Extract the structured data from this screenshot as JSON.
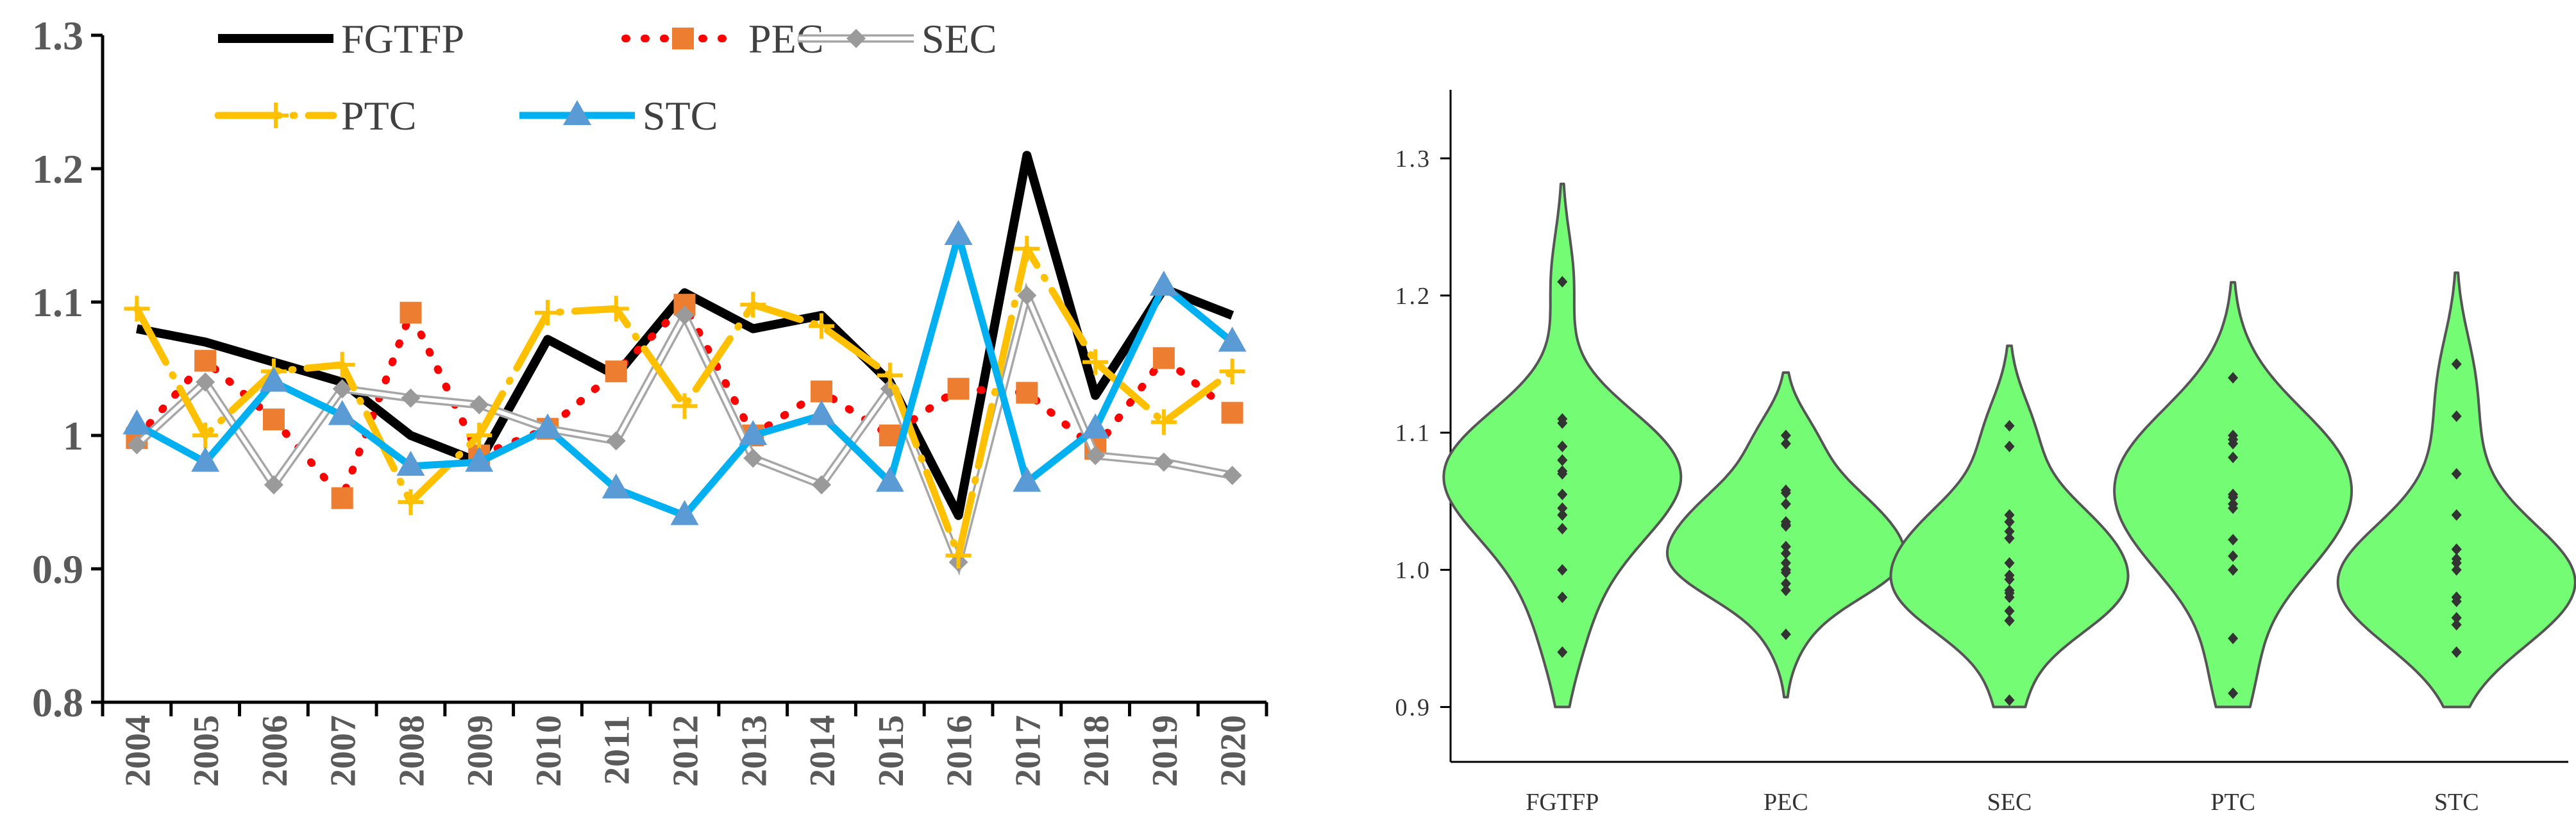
{
  "chart_data": [
    {
      "type": "line",
      "title": "",
      "xlabel": "",
      "ylabel": "",
      "ylim": [
        0.8,
        1.3
      ],
      "y_ticks": [
        "0.8",
        "0.9",
        "1",
        "1.1",
        "1.2",
        "1.3"
      ],
      "categories": [
        "2004",
        "2005",
        "2006",
        "2007",
        "2008",
        "2009",
        "2010",
        "2011",
        "2012",
        "2013",
        "2014",
        "2015",
        "2016",
        "2017",
        "2018",
        "2019",
        "2020"
      ],
      "grid": false,
      "legend": "top",
      "series": [
        {
          "name": "FGTFP",
          "color": "#000000",
          "marker": "none",
          "values": [
            1.08,
            1.07,
            1.055,
            1.04,
            1.0,
            0.98,
            1.072,
            1.045,
            1.107,
            1.08,
            1.09,
            1.04,
            0.94,
            1.21,
            1.03,
            1.11,
            1.09
          ]
        },
        {
          "name": "PEC",
          "color": "#ff0000",
          "marker_color": "#ed7d31",
          "marker": "square",
          "values": [
            0.998,
            1.056,
            1.012,
            0.953,
            1.092,
            0.985,
            1.005,
            1.048,
            1.098,
            1.0,
            1.033,
            1.0,
            1.035,
            1.032,
            0.99,
            1.058,
            1.017
          ]
        },
        {
          "name": "SEC",
          "color": "#a6a6a6",
          "marker": "diamond",
          "values": [
            0.993,
            1.04,
            0.963,
            1.035,
            1.028,
            1.023,
            1.005,
            0.996,
            1.09,
            0.983,
            0.963,
            1.035,
            0.905,
            1.105,
            0.985,
            0.98,
            0.97
          ]
        },
        {
          "name": "PTC",
          "color": "#ffc000",
          "marker": "plus",
          "values": [
            1.095,
            1.0,
            1.048,
            1.053,
            0.95,
            1.0,
            1.092,
            1.095,
            1.022,
            1.098,
            1.082,
            1.045,
            0.91,
            1.14,
            1.055,
            1.01,
            1.048
          ]
        },
        {
          "name": "STC",
          "color": "#00b0f0",
          "marker_color": "#5b9bd5",
          "marker": "triangle",
          "values": [
            1.008,
            0.98,
            1.04,
            1.015,
            0.977,
            0.98,
            1.005,
            0.96,
            0.94,
            1.0,
            1.015,
            0.965,
            1.15,
            0.965,
            1.005,
            1.112,
            1.07
          ]
        }
      ]
    },
    {
      "type": "violin",
      "title": "",
      "xlabel": "",
      "ylabel": "",
      "ylim": [
        0.86,
        1.35
      ],
      "y_ticks": [
        "0.9",
        "1.0",
        "1.1",
        "1.2",
        "1.3"
      ],
      "categories": [
        "FGTFP",
        "PEC",
        "SEC",
        "PTC",
        "STC"
      ],
      "fill_color": "#74fc74",
      "edge_color": "#555555",
      "point_color": "#333333",
      "series": [
        {
          "name": "FGTFP",
          "values": [
            1.08,
            1.07,
            1.055,
            1.04,
            1.0,
            0.98,
            1.072,
            1.045,
            1.107,
            1.08,
            1.09,
            1.04,
            0.94,
            1.21,
            1.03,
            1.11,
            1.09
          ]
        },
        {
          "name": "PEC",
          "values": [
            0.998,
            1.056,
            1.012,
            0.953,
            1.092,
            0.985,
            1.005,
            1.048,
            1.098,
            1.0,
            1.033,
            1.0,
            1.035,
            1.032,
            0.99,
            1.058,
            1.017
          ]
        },
        {
          "name": "SEC",
          "values": [
            0.993,
            1.04,
            0.963,
            1.035,
            1.028,
            1.023,
            1.005,
            0.996,
            1.09,
            0.983,
            0.963,
            1.035,
            0.905,
            1.105,
            0.985,
            0.98,
            0.97
          ]
        },
        {
          "name": "PTC",
          "values": [
            1.095,
            1.0,
            1.048,
            1.053,
            0.95,
            1.0,
            1.092,
            1.095,
            1.022,
            1.098,
            1.082,
            1.045,
            0.91,
            1.14,
            1.055,
            1.01,
            1.048
          ]
        },
        {
          "name": "STC",
          "values": [
            1.008,
            0.98,
            1.04,
            1.015,
            0.977,
            0.98,
            1.005,
            0.96,
            0.94,
            1.0,
            1.015,
            0.965,
            1.15,
            0.965,
            1.005,
            1.112,
            1.07
          ]
        }
      ]
    }
  ]
}
